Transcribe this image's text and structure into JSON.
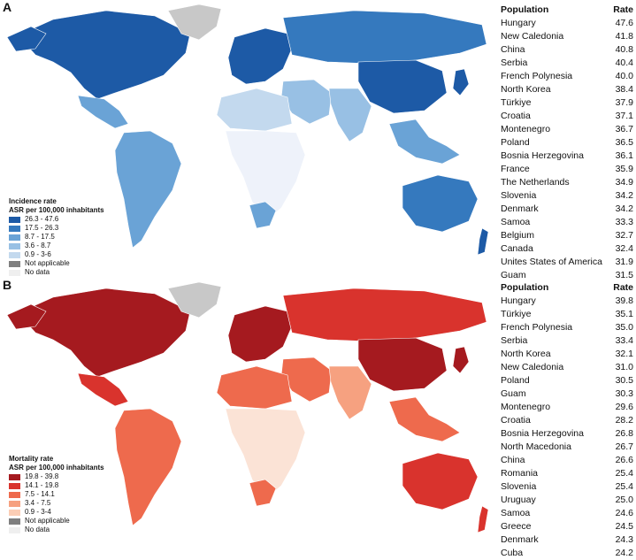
{
  "panels": [
    {
      "letter": "A",
      "legend": {
        "title_line1": "Incidence rate",
        "title_line2": "ASR per 100,000 inhabitants",
        "items": [
          {
            "label": "26.3 - 47.6",
            "color": "#1d5aa6"
          },
          {
            "label": "17.5 - 26.3",
            "color": "#3579be"
          },
          {
            "label": "8.7 - 17.5",
            "color": "#6aa3d6"
          },
          {
            "label": "3.6 - 8.7",
            "color": "#98c0e4"
          },
          {
            "label": "0.9 - 3-6",
            "color": "#c3d9ee"
          },
          {
            "label": "Not applicable",
            "color": "#7f7f7f"
          },
          {
            "label": "No data",
            "color": "#efefef"
          }
        ]
      },
      "table": {
        "header_population": "Population",
        "header_rate": "Rate",
        "rows": [
          {
            "population": "Hungary",
            "rate": "47.6"
          },
          {
            "population": "New Caledonia",
            "rate": "41.8"
          },
          {
            "population": "China",
            "rate": "40.8"
          },
          {
            "population": "Serbia",
            "rate": "40.4"
          },
          {
            "population": "French Polynesia",
            "rate": "40.0"
          },
          {
            "population": "North Korea",
            "rate": "38.4"
          },
          {
            "population": "Türkiye",
            "rate": "37.9"
          },
          {
            "population": "Croatia",
            "rate": "37.1"
          },
          {
            "population": "Montenegro",
            "rate": "36.7"
          },
          {
            "population": "Poland",
            "rate": "36.5"
          },
          {
            "population": "Bosnia Herzegovina",
            "rate": "36.1"
          },
          {
            "population": "France",
            "rate": "35.9"
          },
          {
            "population": "The Netherlands",
            "rate": "34.9"
          },
          {
            "population": "Slovenia",
            "rate": "34.2"
          },
          {
            "population": "Denmark",
            "rate": "34.2"
          },
          {
            "population": "Samoa",
            "rate": "33.3"
          },
          {
            "population": "Belgium",
            "rate": "32.7"
          },
          {
            "population": "Canada",
            "rate": "32.4"
          },
          {
            "population": "Unites States of America",
            "rate": "31.9"
          },
          {
            "population": "Guam",
            "rate": "31.5"
          }
        ]
      },
      "map_colors": {
        "north_america": "#1d5aa6",
        "greenland": "#c8c8c8",
        "mexico": "#6aa3d6",
        "south_america": "#6aa3d6",
        "europe": "#1d5aa6",
        "russia": "#3579be",
        "middle_east": "#98c0e4",
        "north_africa": "#c3d9ee",
        "subsaharan": "#eef2fa",
        "south_africa": "#6aa3d6",
        "south_asia": "#98c0e4",
        "china": "#1d5aa6",
        "se_asia": "#6aa3d6",
        "australia": "#3579be",
        "nz": "#1d5aa6",
        "japan": "#1d5aa6"
      }
    },
    {
      "letter": "B",
      "legend": {
        "title_line1": "Mortality rate",
        "title_line2": "ASR per 100,000 inhabitants",
        "items": [
          {
            "label": "19.8 - 39.8",
            "color": "#a51a1f"
          },
          {
            "label": "14.1 - 19.8",
            "color": "#d9332d"
          },
          {
            "label": "7.5 - 14.1",
            "color": "#ee6a4d"
          },
          {
            "label": "3.4 - 7.5",
            "color": "#f6a180"
          },
          {
            "label": "0.9 - 3-4",
            "color": "#fbcdb5"
          },
          {
            "label": "Not applicable",
            "color": "#7f7f7f"
          },
          {
            "label": "No data",
            "color": "#efefef"
          }
        ]
      },
      "table": {
        "header_population": "Population",
        "header_rate": "Rate",
        "rows": [
          {
            "population": "Hungary",
            "rate": "39.8"
          },
          {
            "population": "Türkiye",
            "rate": "35.1"
          },
          {
            "population": "French Polynesia",
            "rate": "35.0"
          },
          {
            "population": "Serbia",
            "rate": "33.4"
          },
          {
            "population": "North Korea",
            "rate": "32.1"
          },
          {
            "population": "New Caledonia",
            "rate": "31.0"
          },
          {
            "population": "Poland",
            "rate": "30.5"
          },
          {
            "population": "Guam",
            "rate": "30.3"
          },
          {
            "population": "Montenegro",
            "rate": "29.6"
          },
          {
            "population": "Croatia",
            "rate": "28.2"
          },
          {
            "population": "Bosnia Herzegovina",
            "rate": "26.8"
          },
          {
            "population": "North Macedonia",
            "rate": "26.7"
          },
          {
            "population": "China",
            "rate": "26.6"
          },
          {
            "population": "Romania",
            "rate": "25.4"
          },
          {
            "population": "Slovenia",
            "rate": "25.4"
          },
          {
            "population": "Uruguay",
            "rate": "25.0"
          },
          {
            "population": "Samoa",
            "rate": "24.6"
          },
          {
            "population": "Greece",
            "rate": "24.5"
          },
          {
            "population": "Denmark",
            "rate": "24.3"
          },
          {
            "population": "Cuba",
            "rate": "24.2"
          }
        ]
      },
      "map_colors": {
        "north_america": "#a51a1f",
        "greenland": "#c8c8c8",
        "mexico": "#d9332d",
        "south_america": "#ee6a4d",
        "europe": "#a51a1f",
        "russia": "#d9332d",
        "middle_east": "#ee6a4d",
        "north_africa": "#ee6a4d",
        "subsaharan": "#fbe3d6",
        "south_africa": "#ee6a4d",
        "south_asia": "#f6a180",
        "china": "#a51a1f",
        "se_asia": "#ee6a4d",
        "australia": "#d9332d",
        "nz": "#d9332d",
        "japan": "#a51a1f"
      }
    }
  ]
}
